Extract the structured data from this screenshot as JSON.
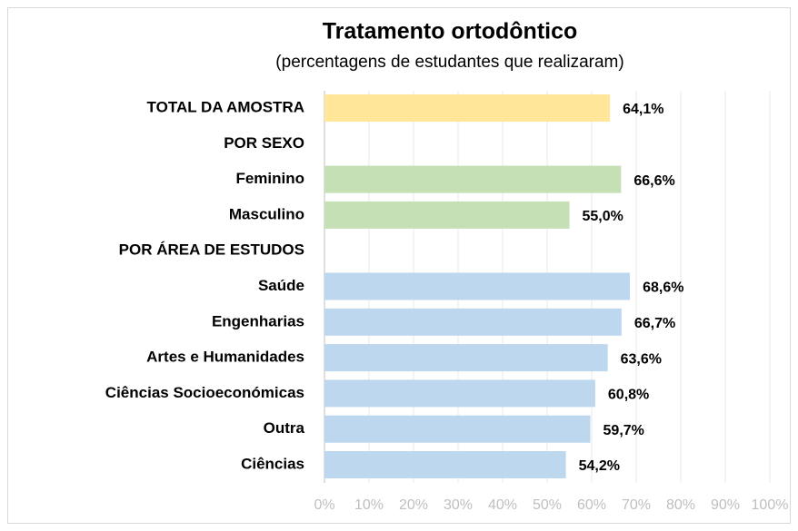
{
  "chart_data": {
    "type": "barh",
    "title": "Tratamento ortodôntico",
    "subtitle": "(percentagens de estudantes que realizaram)",
    "categories": [
      "TOTAL DA AMOSTRA",
      "POR SEXO",
      "Feminino",
      "Masculino",
      "POR ÁREA DE ESTUDOS",
      "Saúde",
      "Engenharias",
      "Artes e Humanidades",
      "Ciências Socioeconómicas",
      "Outra",
      "Ciências"
    ],
    "values": [
      64.1,
      null,
      66.6,
      55.0,
      null,
      68.6,
      66.7,
      63.6,
      60.8,
      59.7,
      54.2
    ],
    "value_labels": [
      "64,1%",
      null,
      "66,6%",
      "55,0%",
      null,
      "68,6%",
      "66,7%",
      "63,6%",
      "60,8%",
      "59,7%",
      "54,2%"
    ],
    "colors": [
      "#ffe699",
      null,
      "#c5e0b4",
      "#c5e0b4",
      null,
      "#bdd7ee",
      "#bdd7ee",
      "#bdd7ee",
      "#bdd7ee",
      "#bdd7ee",
      "#bdd7ee"
    ],
    "xlim": [
      0,
      100
    ],
    "xticks": [
      {
        "value": 0,
        "label": "0%"
      },
      {
        "value": 10,
        "label": "10%"
      },
      {
        "value": 20,
        "label": "20%"
      },
      {
        "value": 30,
        "label": "30%"
      },
      {
        "value": 40,
        "label": "40%"
      },
      {
        "value": 50,
        "label": "50%"
      },
      {
        "value": 60,
        "label": "60%"
      },
      {
        "value": 70,
        "label": "70%"
      },
      {
        "value": 80,
        "label": "80%"
      },
      {
        "value": 90,
        "label": "90%"
      },
      {
        "value": 100,
        "label": "100%"
      }
    ],
    "grid": true
  }
}
